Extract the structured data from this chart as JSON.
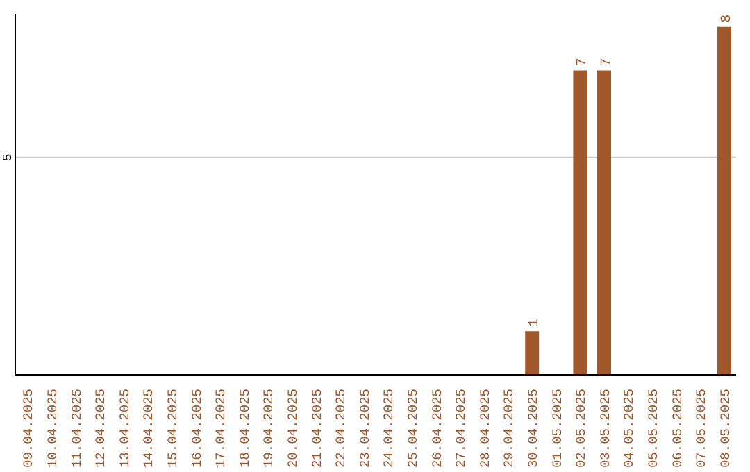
{
  "chart_data": {
    "type": "bar",
    "categories": [
      "09.04.2025",
      "10.04.2025",
      "11.04.2025",
      "12.04.2025",
      "13.04.2025",
      "14.04.2025",
      "15.04.2025",
      "16.04.2025",
      "17.04.2025",
      "18.04.2025",
      "19.04.2025",
      "20.04.2025",
      "21.04.2025",
      "22.04.2025",
      "23.04.2025",
      "24.04.2025",
      "25.04.2025",
      "26.04.2025",
      "27.04.2025",
      "28.04.2025",
      "29.04.2025",
      "30.04.2025",
      "01.05.2025",
      "02.05.2025",
      "03.05.2025",
      "04.05.2025",
      "05.05.2025",
      "06.05.2025",
      "07.05.2025",
      "08.05.2025"
    ],
    "values": [
      null,
      null,
      null,
      null,
      null,
      null,
      null,
      null,
      null,
      null,
      null,
      null,
      null,
      null,
      null,
      null,
      null,
      null,
      null,
      null,
      null,
      1,
      null,
      7,
      7,
      null,
      null,
      null,
      null,
      8
    ],
    "color": "#a0572a",
    "ylim": [
      0,
      8.3
    ],
    "yticks": [
      5
    ],
    "grid": "y",
    "data_labels": true,
    "legend": false
  }
}
